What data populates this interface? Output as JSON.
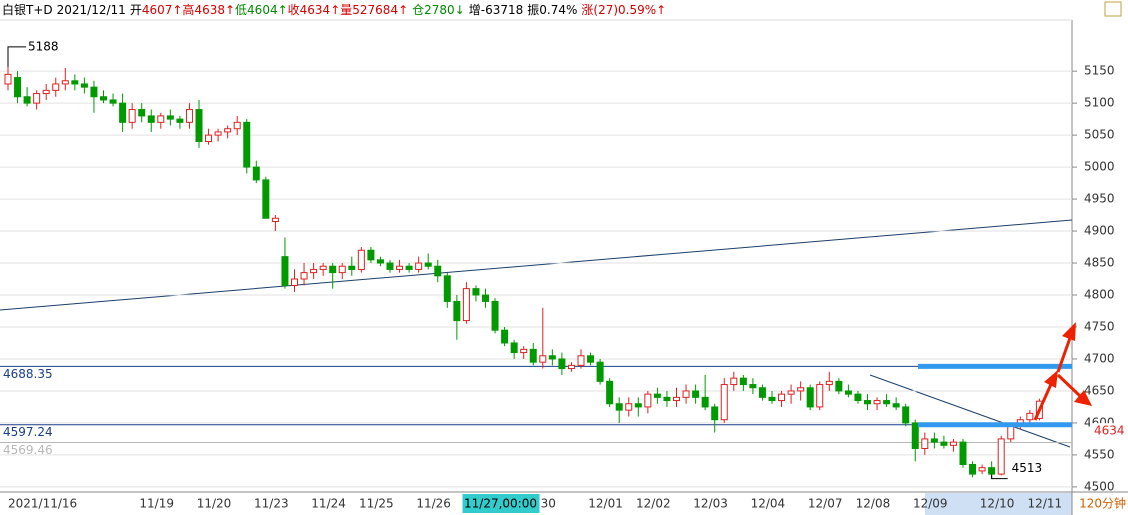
{
  "header": [
    {
      "text": "白银T+D",
      "color": "#000000"
    },
    {
      "text": "2021/12/11",
      "color": "#000000"
    },
    {
      "text": "开",
      "color": "#000000"
    },
    {
      "text": "4607↑",
      "color": "#d40000"
    },
    {
      "text": "高",
      "color": "#d40000"
    },
    {
      "text": "4638↑",
      "color": "#d40000"
    },
    {
      "text": "低",
      "color": "#008a00"
    },
    {
      "text": "4604↑",
      "color": "#008a00"
    },
    {
      "text": "收",
      "color": "#d40000"
    },
    {
      "text": "4634↑",
      "color": "#d40000"
    },
    {
      "text": "量",
      "color": "#d40000"
    },
    {
      "text": "527684↑",
      "color": "#d40000"
    },
    {
      "text": "仓",
      "color": "#008a00"
    },
    {
      "text": "2780↓",
      "color": "#008a00"
    },
    {
      "text": "增-63718",
      "color": "#000000"
    },
    {
      "text": "振0.74%",
      "color": "#000000"
    },
    {
      "text": "涨(27)0.59%↑",
      "color": "#d40000"
    }
  ],
  "chart_data": {
    "type": "candlestick",
    "timeframe": "120分钟",
    "up_color": "#e02020",
    "down_color": "#009a00",
    "cursor_category": 50,
    "categories": [
      "2021/11/16",
      null,
      null,
      null,
      null,
      null,
      null,
      null,
      null,
      null,
      null,
      null,
      null,
      null,
      "11/19",
      null,
      null,
      null,
      null,
      null,
      "11/20",
      null,
      null,
      null,
      null,
      null,
      "11/23",
      null,
      null,
      null,
      null,
      null,
      "11/24",
      null,
      null,
      null,
      null,
      "11/25",
      null,
      null,
      null,
      null,
      null,
      "11/26",
      null,
      null,
      null,
      null,
      null,
      null,
      "11/27,00:00",
      null,
      null,
      null,
      null,
      "30",
      null,
      null,
      null,
      null,
      null,
      "12/01",
      null,
      null,
      null,
      null,
      "12/02",
      null,
      null,
      null,
      null,
      null,
      "12/03",
      null,
      null,
      null,
      null,
      null,
      "12/04",
      null,
      null,
      null,
      null,
      null,
      "12/07",
      null,
      null,
      null,
      null,
      "12/08",
      null,
      null,
      null,
      null,
      null,
      "12/09",
      null,
      null,
      null,
      null,
      null,
      null,
      "12/10",
      null,
      null,
      null,
      null,
      "12/11",
      null
    ],
    "open": [
      5130,
      5140,
      5110,
      5100,
      5115,
      5120,
      5130,
      5135,
      5130,
      5125,
      5110,
      5105,
      5100,
      5070,
      5090,
      5080,
      5070,
      5080,
      5075,
      5070,
      5090,
      5040,
      5050,
      5055,
      5060,
      5070,
      5000,
      4980,
      4915,
      4860,
      4815,
      4825,
      4835,
      4840,
      4845,
      4835,
      4845,
      4840,
      4870,
      4855,
      4850,
      4840,
      4845,
      4840,
      4850,
      4845,
      4830,
      4790,
      4760,
      4810,
      4800,
      4790,
      4745,
      4725,
      4710,
      4715,
      4695,
      4705,
      4700,
      4685,
      4690,
      4705,
      4695,
      4665,
      4630,
      4620,
      4630,
      4625,
      4645,
      4640,
      4635,
      4640,
      4650,
      4640,
      4625,
      4605,
      4660,
      4670,
      4660,
      4655,
      4640,
      4635,
      4645,
      4650,
      4655,
      4625,
      4660,
      4665,
      4650,
      4645,
      4635,
      4630,
      4635,
      4630,
      4625,
      4600,
      4560,
      4575,
      4570,
      4565,
      4570,
      4535,
      4525,
      4530,
      4520,
      4575,
      4595,
      4605,
      4607
    ],
    "high": [
      5188,
      5150,
      5125,
      5120,
      5130,
      5140,
      5155,
      5145,
      5140,
      5135,
      5120,
      5115,
      5115,
      5100,
      5100,
      5090,
      5085,
      5090,
      5080,
      5100,
      5105,
      5060,
      5060,
      5065,
      5080,
      5075,
      5010,
      4985,
      4925,
      4890,
      4840,
      4850,
      4850,
      4850,
      4850,
      4850,
      4860,
      4875,
      4875,
      4860,
      4855,
      4855,
      4850,
      4860,
      4865,
      4855,
      4835,
      4800,
      4820,
      4815,
      4810,
      4795,
      4750,
      4730,
      4720,
      4725,
      4780,
      4715,
      4710,
      4695,
      4715,
      4710,
      4700,
      4670,
      4640,
      4640,
      4640,
      4650,
      4655,
      4650,
      4655,
      4660,
      4660,
      4675,
      4630,
      4670,
      4680,
      4675,
      4670,
      4660,
      4650,
      4650,
      4660,
      4665,
      4660,
      4665,
      4680,
      4670,
      4660,
      4650,
      4645,
      4640,
      4645,
      4640,
      4630,
      4605,
      4585,
      4585,
      4580,
      4575,
      4575,
      4540,
      4535,
      4540,
      4580,
      4600,
      4610,
      4620,
      4638
    ],
    "low": [
      5120,
      5100,
      5095,
      5090,
      5105,
      5110,
      5120,
      5120,
      5115,
      5085,
      5100,
      5095,
      5055,
      5060,
      5070,
      5055,
      5060,
      5065,
      5060,
      5060,
      5030,
      5035,
      5040,
      5045,
      5050,
      4990,
      4975,
      4920,
      4900,
      4810,
      4805,
      4815,
      4825,
      4830,
      4810,
      4825,
      4830,
      4835,
      4850,
      4845,
      4835,
      4835,
      4835,
      4835,
      4840,
      4820,
      4780,
      4730,
      4755,
      4790,
      4780,
      4740,
      4720,
      4700,
      4700,
      4690,
      4685,
      4690,
      4675,
      4680,
      4685,
      4690,
      4660,
      4625,
      4600,
      4610,
      4610,
      4615,
      4630,
      4625,
      4625,
      4630,
      4630,
      4620,
      4585,
      4600,
      4650,
      4650,
      4645,
      4635,
      4630,
      4625,
      4630,
      4635,
      4620,
      4620,
      4650,
      4645,
      4640,
      4630,
      4620,
      4620,
      4625,
      4620,
      4595,
      4540,
      4550,
      4560,
      4560,
      4555,
      4530,
      4515,
      4520,
      4513,
      4518,
      4570,
      4590,
      4600,
      4604
    ],
    "close": [
      5145,
      5110,
      5100,
      5115,
      5120,
      5130,
      5135,
      5130,
      5125,
      5110,
      5105,
      5100,
      5070,
      5090,
      5080,
      5070,
      5080,
      5075,
      5070,
      5090,
      5040,
      5050,
      5055,
      5060,
      5070,
      5000,
      4980,
      4920,
      4920,
      4815,
      4825,
      4835,
      4840,
      4845,
      4835,
      4845,
      4840,
      4870,
      4855,
      4850,
      4840,
      4845,
      4840,
      4850,
      4845,
      4830,
      4790,
      4760,
      4810,
      4800,
      4790,
      4745,
      4725,
      4710,
      4715,
      4695,
      4705,
      4700,
      4685,
      4690,
      4705,
      4695,
      4665,
      4630,
      4620,
      4630,
      4625,
      4645,
      4640,
      4635,
      4640,
      4650,
      4640,
      4625,
      4605,
      4660,
      4670,
      4660,
      4655,
      4640,
      4635,
      4645,
      4650,
      4655,
      4625,
      4660,
      4665,
      4650,
      4645,
      4635,
      4630,
      4635,
      4630,
      4625,
      4600,
      4560,
      4575,
      4570,
      4565,
      4570,
      4535,
      4520,
      4530,
      4520,
      4575,
      4595,
      4605,
      4615,
      4634
    ],
    "levels": [
      4688.35,
      4597.24,
      4569.46
    ],
    "level_colors": [
      "#1a3f8a",
      "#1a3f8a",
      "#b8b8b8"
    ],
    "ylim": [
      4492,
      5230
    ],
    "yticks": [
      4500,
      4550,
      4600,
      4650,
      4700,
      4750,
      4800,
      4850,
      4900,
      4950,
      5000,
      5050,
      5100,
      5150
    ],
    "grid": true
  }
}
